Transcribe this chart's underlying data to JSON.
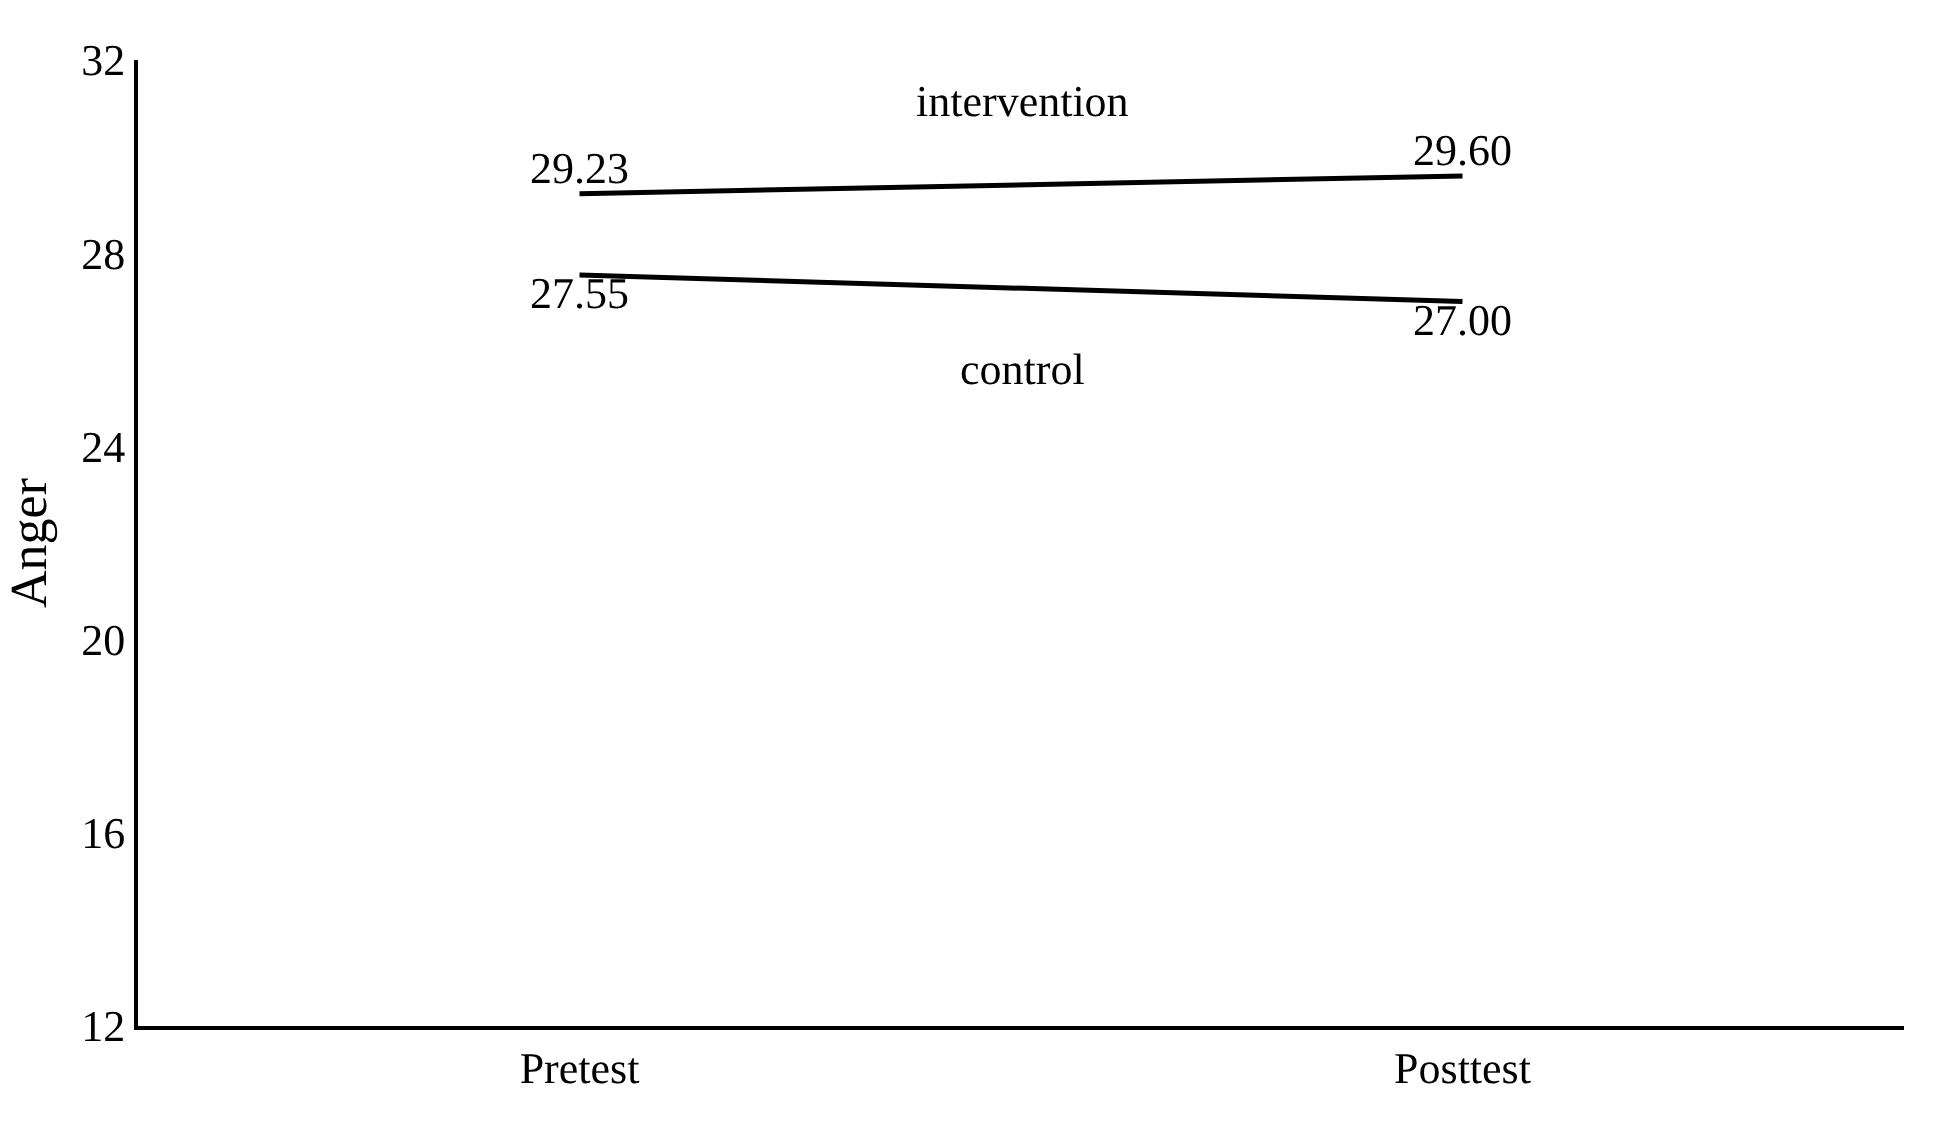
{
  "chart_data": {
    "type": "line",
    "ylabel": "Anger",
    "categories": [
      "Pretest",
      "Posttest"
    ],
    "series": [
      {
        "name": "intervention",
        "color": "#000000",
        "values": [
          29.23,
          29.6
        ],
        "value_labels": [
          "29.23",
          "29.60"
        ]
      },
      {
        "name": "control",
        "color": "#000000",
        "values": [
          27.55,
          27.0
        ],
        "value_labels": [
          "27.55",
          "27.00"
        ]
      }
    ],
    "ylim": [
      12,
      32
    ],
    "yticks": [
      12,
      16,
      20,
      24,
      28,
      32
    ],
    "legend": false,
    "marker": "none",
    "line_style": "solid"
  }
}
